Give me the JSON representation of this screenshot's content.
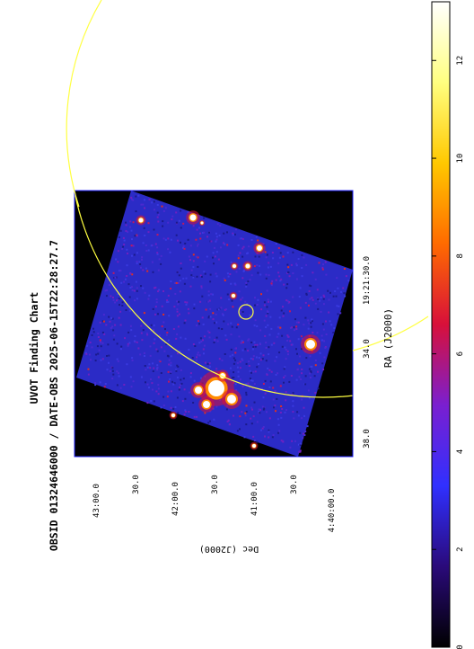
{
  "figure": {
    "title": "UVOT Finding Chart",
    "subtitle": "OBSID 01324646000 / DATE-OBS 2025-06-15T22:28:27.7",
    "ra_label": "RA (J2000)",
    "dec_label": "Dec (J2000)",
    "ra_ticks": [
      "38.0",
      "34.0",
      "19:21:30.0"
    ],
    "dec_ticks": [
      "43:00.0",
      "30.0",
      "42:00.0",
      "30.0",
      "41:00.0",
      "30.0",
      "4:40:00.0"
    ]
  },
  "colorbar": {
    "ticks": [
      "0",
      "2",
      "4",
      "6",
      "8",
      "10",
      "12"
    ],
    "colormap": [
      "#000000",
      "#2a0a7a",
      "#3030ff",
      "#7a1fd0",
      "#d8103a",
      "#ff6a00",
      "#ffc800",
      "#ffff80",
      "#ffffff"
    ]
  },
  "image": {
    "background": "#000000",
    "field_color": "#2a2ac8",
    "frame_color": "#2020ff",
    "circle_color": "#ffff40"
  }
}
